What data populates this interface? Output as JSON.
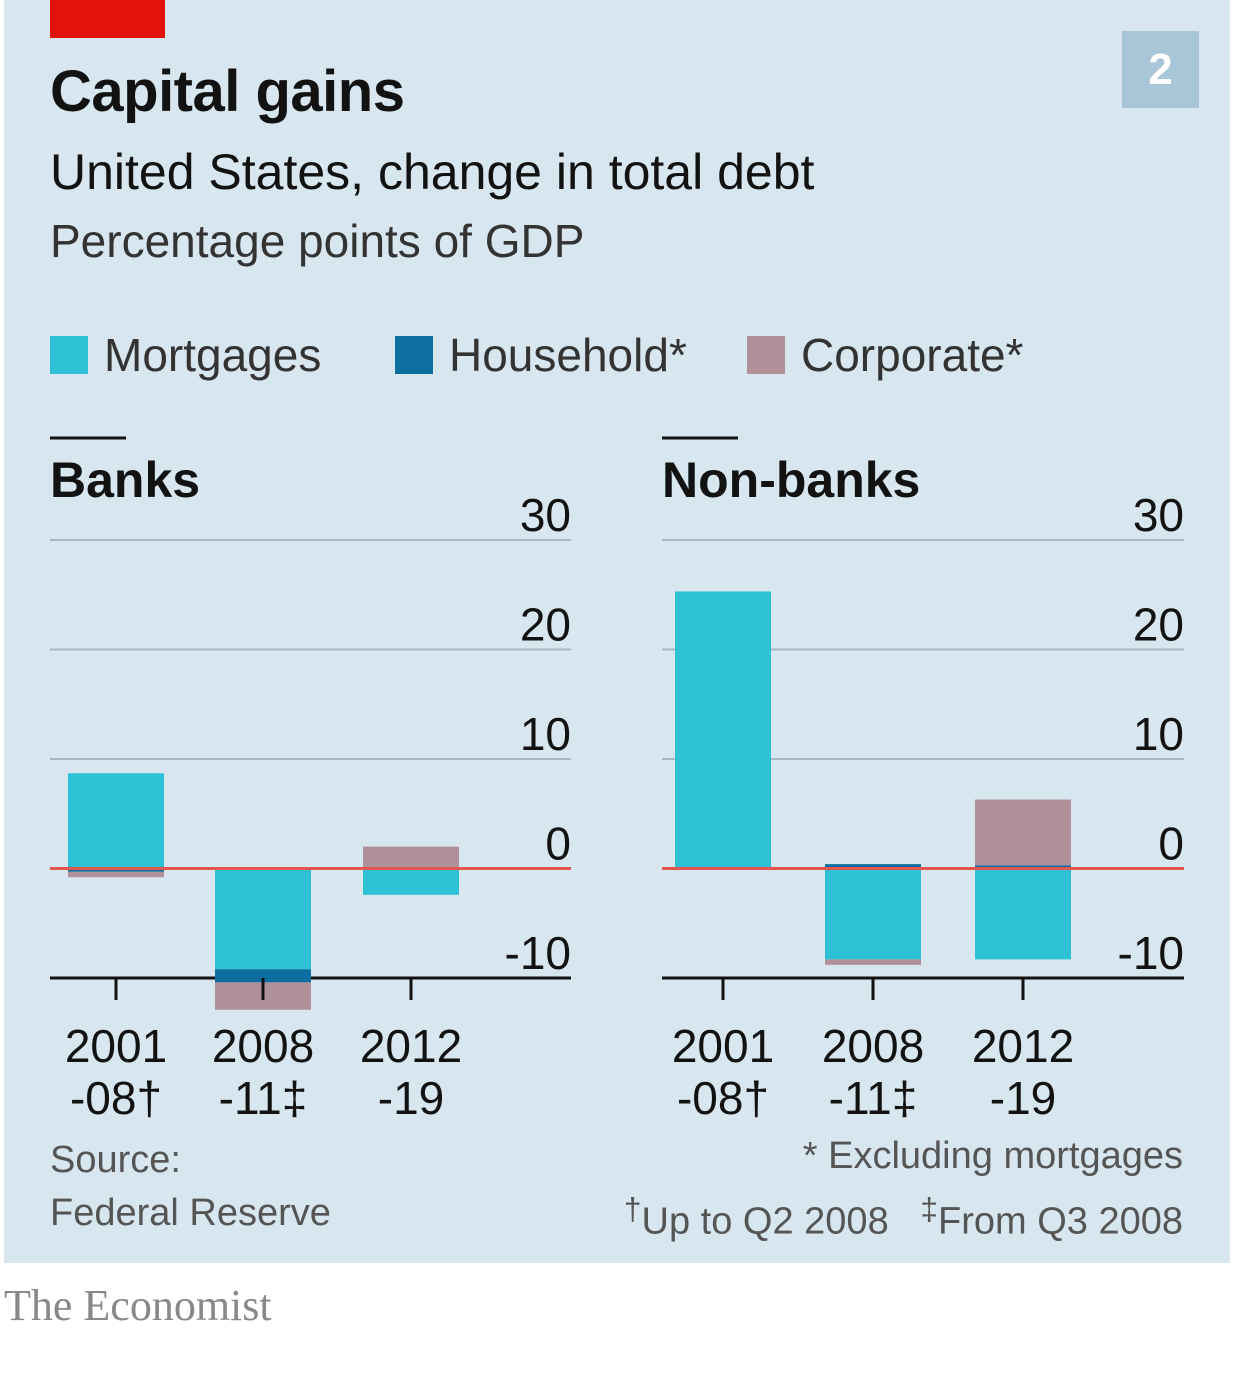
{
  "header": {
    "chart_number": "2",
    "title": "Capital gains",
    "subtitle": "United States, change in total debt",
    "unit": "Percentage points of GDP"
  },
  "legend": [
    {
      "label": "Mortgages",
      "color": "#2ec0d4"
    },
    {
      "label": "Household*",
      "color": "#0f6ea0"
    },
    {
      "label": "Corporate*",
      "color": "#b19199"
    }
  ],
  "colors": {
    "zero_line": "#e3564f",
    "grid": "#a8b6bf",
    "axis": "#121212",
    "brand": "#e3120b"
  },
  "chart_data": [
    {
      "type": "bar",
      "stacked": true,
      "title": "Banks",
      "categories": [
        [
          "2001",
          "-08†"
        ],
        [
          "2008",
          "-11‡"
        ],
        [
          "2012",
          "-19"
        ]
      ],
      "series": [
        {
          "name": "Mortgages",
          "values": [
            8.7,
            -9.2,
            -2.4
          ]
        },
        {
          "name": "Household*",
          "values": [
            -0.3,
            -1.2,
            0.0
          ]
        },
        {
          "name": "Corporate*",
          "values": [
            -0.5,
            -2.5,
            2.0
          ]
        }
      ],
      "ylim": [
        -10,
        30
      ],
      "yticks": [
        "30",
        "20",
        "10",
        "0",
        "-10"
      ]
    },
    {
      "type": "bar",
      "stacked": true,
      "title": "Non-banks",
      "categories": [
        [
          "2001",
          "-08†"
        ],
        [
          "2008",
          "-11‡"
        ],
        [
          "2012",
          "-19"
        ]
      ],
      "series": [
        {
          "name": "Mortgages",
          "values": [
            25.3,
            -8.3,
            -8.3
          ]
        },
        {
          "name": "Household*",
          "values": [
            0.0,
            0.4,
            0.3
          ]
        },
        {
          "name": "Corporate*",
          "values": [
            0.0,
            -0.5,
            6.0
          ]
        }
      ],
      "ylim": [
        -10,
        30
      ],
      "yticks": [
        "30",
        "20",
        "10",
        "0",
        "-10"
      ]
    }
  ],
  "footer": {
    "source_label": "Source:",
    "source_name": "Federal Reserve",
    "note_excluding": "* Excluding mortgages",
    "note_dagger_mark": "†",
    "note_dagger_text": "Up to Q2 2008",
    "note_ddagger_mark": "‡",
    "note_ddagger_text": "From Q3 2008",
    "publisher": "The Economist"
  }
}
